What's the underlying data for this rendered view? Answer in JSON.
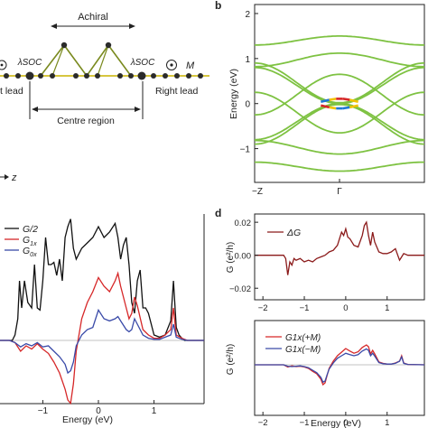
{
  "panel_labels": {
    "b": "b",
    "d": "d"
  },
  "schematic": {
    "achiral_label": "Achiral",
    "lambda_soc_left": "λSOC",
    "lambda_soc_right": "λSOC",
    "magnet_label": "M",
    "left_lead_label": "t lead",
    "right_lead_label": "Right lead",
    "centre_region_label": "Centre region",
    "z_axis_label": "z",
    "colors": {
      "chain": "#7a8a1f",
      "node": "#2b2b2b",
      "highlight": "#c8b400"
    }
  },
  "chart_data": [
    {
      "id": "band-structure",
      "type": "line",
      "ylabel": "Energy (eV)",
      "xlabel": "",
      "x_ticks": [
        "−Z",
        "Γ"
      ],
      "y_ticks": [
        "−1",
        "0",
        "1",
        "2"
      ],
      "ylim": [
        -1.75,
        2.2
      ],
      "bands": [
        {
          "kind": "cosine",
          "e_gamma": 1.5,
          "e_z": 1.3
        },
        {
          "kind": "cosine",
          "e_gamma": 1.12,
          "e_z": 0.82
        },
        {
          "kind": "cosine",
          "e_gamma": 0.02,
          "e_z": 0.9
        },
        {
          "kind": "cosine",
          "e_gamma": -0.02,
          "e_z": -0.9
        },
        {
          "kind": "cosine",
          "e_gamma": -1.12,
          "e_z": -0.82
        },
        {
          "kind": "cosine",
          "e_gamma": -1.5,
          "e_z": -1.3
        },
        {
          "kind": "cosine",
          "e_gamma": 0.0,
          "e_z": 0.8
        },
        {
          "kind": "cosine",
          "e_gamma": 0.0,
          "e_z": -0.8
        },
        {
          "kind": "cosine",
          "e_gamma": -0.65,
          "e_z": 0.25
        },
        {
          "kind": "cosine",
          "e_gamma": 0.65,
          "e_z": -0.25
        }
      ],
      "colors": {
        "band": "#7ec242",
        "spin_up": "#d62728",
        "spin_down": "#1f77d4",
        "mid": "#f2c200"
      }
    },
    {
      "id": "transmission",
      "type": "line",
      "xlabel": "Energy (eV)",
      "x_ticks": [
        "−1",
        "0",
        "1"
      ],
      "xlim": [
        -1.9,
        1.9
      ],
      "legend": [
        "G/2",
        "G1x",
        "G0x"
      ],
      "legend_sub": [
        "",
        "1x",
        "0x"
      ],
      "series": [
        {
          "name": "G/2",
          "color": "#111111",
          "x": [
            -1.9,
            -1.55,
            -1.5,
            -1.45,
            -1.42,
            -1.38,
            -1.33,
            -1.27,
            -1.2,
            -1.15,
            -1.1,
            -1.05,
            -1.0,
            -0.95,
            -0.9,
            -0.85,
            -0.8,
            -0.75,
            -0.7,
            -0.65,
            -0.6,
            -0.55,
            -0.5,
            -0.45,
            -0.4,
            -0.3,
            -0.2,
            -0.1,
            0.0,
            0.1,
            0.2,
            0.3,
            0.35,
            0.4,
            0.45,
            0.5,
            0.55,
            0.6,
            0.65,
            0.7,
            0.75,
            0.8,
            0.85,
            0.9,
            1.0,
            1.1,
            1.2,
            1.3,
            1.35,
            1.4,
            1.45,
            1.5,
            1.55,
            1.9
          ],
          "y": [
            0,
            0,
            0.05,
            0.2,
            0.55,
            0.3,
            0.55,
            0.35,
            0.3,
            0.7,
            0.3,
            0.28,
            0.55,
            0.95,
            0.7,
            0.7,
            0.72,
            0.6,
            0.75,
            0.55,
            0.95,
            1.05,
            1.12,
            0.85,
            0.75,
            0.85,
            0.9,
            0.95,
            1.05,
            0.95,
            1.0,
            1.08,
            0.95,
            0.75,
            0.88,
            0.95,
            0.7,
            0.35,
            0.25,
            0.55,
            0.65,
            0.3,
            0.3,
            0.25,
            0.05,
            0.03,
            0.05,
            0.18,
            0.55,
            0.12,
            0.05,
            0.02,
            0,
            0
          ]
        },
        {
          "name": "G1x",
          "color": "#d62728",
          "x": [
            -1.9,
            -1.6,
            -1.5,
            -1.4,
            -1.3,
            -1.2,
            -1.1,
            -1.0,
            -0.9,
            -0.8,
            -0.7,
            -0.6,
            -0.55,
            -0.5,
            -0.45,
            -0.4,
            -0.3,
            -0.2,
            -0.1,
            0.0,
            0.1,
            0.2,
            0.3,
            0.35,
            0.4,
            0.5,
            0.55,
            0.6,
            0.65,
            0.7,
            0.8,
            0.9,
            1.0,
            1.1,
            1.2,
            1.3,
            1.35,
            1.4,
            1.5,
            1.6,
            1.9
          ],
          "y": [
            0,
            0,
            -0.02,
            -0.1,
            -0.05,
            -0.08,
            -0.03,
            -0.08,
            -0.12,
            -0.2,
            -0.3,
            -0.45,
            -0.55,
            -0.58,
            -0.4,
            -0.1,
            0.2,
            0.35,
            0.45,
            0.58,
            0.5,
            0.45,
            0.55,
            0.62,
            0.5,
            0.3,
            0.2,
            0.25,
            0.4,
            0.32,
            0.1,
            0.05,
            0.02,
            0.02,
            0.05,
            0.1,
            0.3,
            0.05,
            0.02,
            0,
            0
          ]
        },
        {
          "name": "G0x",
          "color": "#3a4aa8",
          "x": [
            -1.9,
            -1.6,
            -1.5,
            -1.4,
            -1.3,
            -1.2,
            -1.1,
            -1.0,
            -0.9,
            -0.8,
            -0.7,
            -0.6,
            -0.55,
            -0.5,
            -0.45,
            -0.4,
            -0.3,
            -0.2,
            -0.1,
            0.0,
            0.1,
            0.2,
            0.3,
            0.35,
            0.4,
            0.5,
            0.55,
            0.6,
            0.65,
            0.7,
            0.8,
            0.9,
            1.0,
            1.1,
            1.2,
            1.3,
            1.35,
            1.4,
            1.5,
            1.6,
            1.9
          ],
          "y": [
            0,
            0,
            -0.02,
            -0.06,
            -0.03,
            -0.05,
            -0.02,
            -0.06,
            -0.05,
            -0.1,
            -0.15,
            -0.22,
            -0.3,
            -0.28,
            -0.2,
            -0.05,
            0.05,
            0.1,
            0.12,
            0.28,
            0.2,
            0.18,
            0.2,
            0.22,
            0.18,
            0.1,
            0.08,
            0.1,
            0.2,
            0.15,
            0.05,
            0.02,
            0.01,
            0.01,
            0.03,
            0.05,
            0.15,
            0.03,
            0.01,
            0,
            0
          ]
        }
      ]
    },
    {
      "id": "delta-g",
      "type": "line",
      "ylabel": "G (e²/h)",
      "x_ticks": [
        "−2",
        "−1",
        "0",
        "1"
      ],
      "y_ticks": [
        "0.02",
        "0.00",
        "−0.02"
      ],
      "xlim": [
        -2.2,
        1.9
      ],
      "ylim": [
        -0.027,
        0.025
      ],
      "legend": [
        "ΔG"
      ],
      "series": [
        {
          "name": "ΔG",
          "color": "#8b1a1a",
          "x": [
            -2.2,
            -1.5,
            -1.45,
            -1.4,
            -1.35,
            -1.3,
            -1.25,
            -1.2,
            -1.1,
            -1.0,
            -0.9,
            -0.8,
            -0.7,
            -0.6,
            -0.5,
            -0.4,
            -0.3,
            -0.2,
            -0.1,
            -0.05,
            0.0,
            0.05,
            0.1,
            0.2,
            0.3,
            0.4,
            0.45,
            0.5,
            0.55,
            0.6,
            0.65,
            0.7,
            0.8,
            0.9,
            1.0,
            1.1,
            1.2,
            1.3,
            1.35,
            1.4,
            1.5,
            1.9
          ],
          "y": [
            0,
            0,
            -0.002,
            -0.012,
            -0.004,
            -0.006,
            -0.002,
            -0.003,
            -0.002,
            -0.004,
            -0.003,
            -0.004,
            -0.002,
            -0.001,
            0.0,
            0.002,
            0.003,
            0.006,
            0.014,
            0.012,
            0.016,
            0.011,
            0.01,
            0.006,
            0.005,
            0.012,
            0.018,
            0.02,
            0.012,
            0.006,
            0.014,
            0.008,
            0.002,
            0.001,
            0.001,
            0.002,
            0.004,
            -0.003,
            -0.001,
            0.001,
            0,
            0
          ]
        }
      ]
    },
    {
      "id": "magnetization",
      "type": "line",
      "ylabel": "G (e²/h)",
      "xlabel": "Energy (eV)",
      "x_ticks": [
        "−2",
        "−1",
        "0",
        "1"
      ],
      "xlim": [
        -2.2,
        1.9
      ],
      "legend": [
        "G1x(+M)",
        "G1x(−M)"
      ],
      "series": [
        {
          "name": "G1x(+M)",
          "color": "#d62728",
          "x": [
            -2.2,
            -1.5,
            -1.4,
            -1.3,
            -1.2,
            -1.1,
            -1.0,
            -0.9,
            -0.8,
            -0.7,
            -0.6,
            -0.55,
            -0.5,
            -0.45,
            -0.4,
            -0.3,
            -0.2,
            -0.1,
            0.0,
            0.1,
            0.2,
            0.3,
            0.4,
            0.5,
            0.55,
            0.6,
            0.65,
            0.7,
            0.8,
            0.9,
            1.0,
            1.1,
            1.2,
            1.3,
            1.35,
            1.4,
            1.5,
            1.9
          ],
          "y": [
            0,
            0,
            -0.06,
            -0.03,
            -0.05,
            -0.04,
            -0.06,
            -0.1,
            -0.18,
            -0.25,
            -0.4,
            -0.55,
            -0.5,
            -0.3,
            -0.1,
            0.1,
            0.25,
            0.35,
            0.45,
            0.38,
            0.32,
            0.36,
            0.48,
            0.55,
            0.5,
            0.3,
            0.4,
            0.3,
            0.08,
            0.04,
            0.02,
            0.02,
            0.05,
            0.1,
            0.25,
            0.05,
            0.01,
            0
          ]
        },
        {
          "name": "G1x(−M)",
          "color": "#3a4aa8",
          "x": [
            -2.2,
            -1.5,
            -1.4,
            -1.3,
            -1.2,
            -1.1,
            -1.0,
            -0.9,
            -0.8,
            -0.7,
            -0.6,
            -0.55,
            -0.5,
            -0.45,
            -0.4,
            -0.3,
            -0.2,
            -0.1,
            0.0,
            0.1,
            0.2,
            0.3,
            0.4,
            0.5,
            0.55,
            0.6,
            0.65,
            0.7,
            0.8,
            0.9,
            1.0,
            1.1,
            1.2,
            1.3,
            1.35,
            1.4,
            1.5,
            1.9
          ],
          "y": [
            0,
            0,
            -0.04,
            -0.05,
            -0.04,
            -0.03,
            -0.05,
            -0.08,
            -0.15,
            -0.22,
            -0.35,
            -0.48,
            -0.45,
            -0.28,
            -0.12,
            0.05,
            0.18,
            0.25,
            0.32,
            0.28,
            0.25,
            0.28,
            0.38,
            0.44,
            0.4,
            0.25,
            0.32,
            0.24,
            0.06,
            0.03,
            0.02,
            0.02,
            0.04,
            0.1,
            0.22,
            0.04,
            0.01,
            0
          ]
        }
      ]
    }
  ]
}
